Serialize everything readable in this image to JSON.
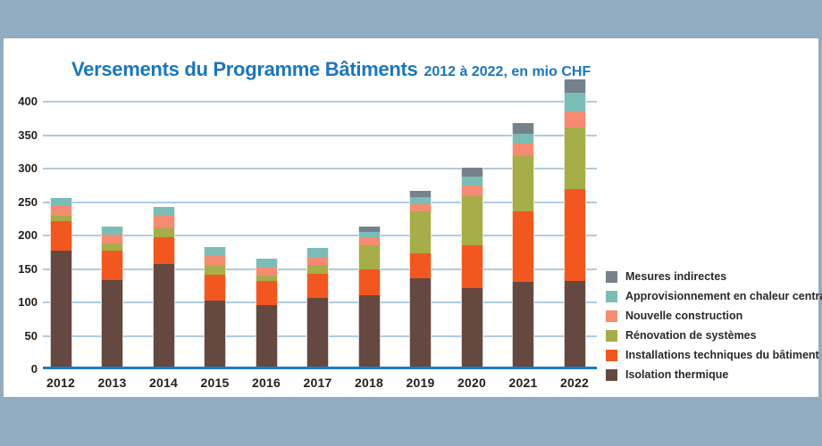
{
  "title": {
    "main": "Versements du Programme Bâtiments",
    "suffix": "2012 à 2022, en mio CHF"
  },
  "colors": {
    "background": "#92adc1",
    "card": "#ffffff",
    "title": "#1b76bc",
    "gridline": "#aecbe2",
    "axis_line": "#1e7bc2",
    "tick_text": "#23211e",
    "legend_text": "#2b2926"
  },
  "chart_data": {
    "type": "bar",
    "stacked": true,
    "title": "Versements du Programme Bâtiments 2012 à 2022, en mio CHF",
    "unit": "mio CHF",
    "categories": [
      "2012",
      "2013",
      "2014",
      "2015",
      "2016",
      "2017",
      "2018",
      "2019",
      "2020",
      "2021",
      "2022"
    ],
    "series": [
      {
        "name": "Isolation thermique",
        "color": "#654840",
        "values": [
          173,
          130,
          153,
          99,
          92,
          103,
          107,
          132,
          118,
          127,
          128
        ]
      },
      {
        "name": "Installations techniques du bâtiment",
        "color": "#f2571f",
        "values": [
          44,
          43,
          41,
          38,
          36,
          36,
          38,
          37,
          63,
          105,
          137
        ]
      },
      {
        "name": "Rénovation de systèmes",
        "color": "#a6ad49",
        "values": [
          9,
          11,
          13,
          14,
          8,
          13,
          36,
          63,
          74,
          83,
          92
        ]
      },
      {
        "name": "Nouvelle construction",
        "color": "#f58c72",
        "values": [
          16,
          13,
          20,
          15,
          12,
          11,
          13,
          11,
          16,
          18,
          25
        ]
      },
      {
        "name": "Approvisionnement en chaleur centralisé",
        "color": "#7bbcb6",
        "values": [
          10,
          13,
          12,
          13,
          13,
          14,
          7,
          10,
          13,
          15,
          28
        ]
      },
      {
        "name": "Mesures indirectes",
        "color": "#75828b",
        "values": [
          0,
          0,
          0,
          0,
          0,
          0,
          9,
          10,
          14,
          16,
          20
        ]
      }
    ],
    "totals": [
      252,
      210,
      239,
      179,
      161,
      177,
      210,
      263,
      298,
      364,
      430
    ],
    "y_ticks": [
      0,
      50,
      100,
      150,
      200,
      250,
      300,
      350,
      400
    ],
    "ylim": [
      0,
      440
    ],
    "grid": true,
    "legend_position": "right",
    "legend_order": [
      "Mesures indirectes",
      "Approvisionnement en chaleur centralisé",
      "Nouvelle construction",
      "Rénovation de systèmes",
      "Installations techniques du bâtiment",
      "Isolation thermique"
    ]
  }
}
